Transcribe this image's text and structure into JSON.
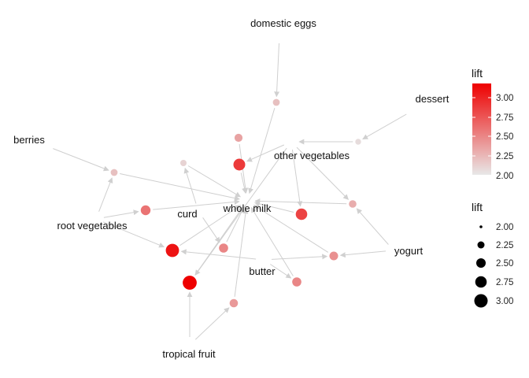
{
  "item_labels": {
    "domestic_eggs": "domestic eggs",
    "dessert": "dessert",
    "berries": "berries",
    "other_vegetables": "other vegetables",
    "curd": "curd",
    "whole_milk": "whole milk",
    "root_vegetables": "root vegetables",
    "yogurt": "yogurt",
    "butter": "butter",
    "tropical_fruit": "tropical fruit"
  },
  "legend": {
    "color": {
      "title": "lift",
      "ticks": [
        "3.00",
        "2.75",
        "2.50",
        "2.25",
        "2.00"
      ],
      "range": [
        2.0,
        3.2
      ],
      "low_color": "#e6e6e6",
      "high_color": "#ee0000"
    },
    "size": {
      "title": "lift",
      "items": [
        "2.00",
        "2.25",
        "2.50",
        "2.75",
        "3.00"
      ]
    }
  },
  "colors": {
    "edge": "#cfcfcf",
    "background": "#ffffff"
  },
  "chart_data": {
    "type": "network",
    "items": [
      "domestic eggs",
      "dessert",
      "berries",
      "other vegetables",
      "curd",
      "whole milk",
      "root vegetables",
      "yogurt",
      "butter",
      "tropical fruit"
    ],
    "rules": [
      {
        "lift": 2.2
      },
      {
        "lift": 2.05
      },
      {
        "lift": 2.2
      },
      {
        "lift": 2.1
      },
      {
        "lift": 2.9
      },
      {
        "lift": 2.6
      },
      {
        "lift": 2.85
      },
      {
        "lift": 3.1
      },
      {
        "lift": 3.2
      },
      {
        "lift": 2.5
      },
      {
        "lift": 2.45
      },
      {
        "lift": 2.3
      },
      {
        "lift": 2.5
      },
      {
        "lift": 2.4
      },
      {
        "lift": 2.35
      }
    ],
    "edges": [
      [
        "domestic eggs",
        "rule1"
      ],
      [
        "rule1",
        "whole milk"
      ],
      [
        "dessert",
        "rule2"
      ],
      [
        "rule2",
        "other vegetables"
      ],
      [
        "berries",
        "rule3"
      ],
      [
        "rule3",
        "whole milk"
      ]
    ]
  }
}
